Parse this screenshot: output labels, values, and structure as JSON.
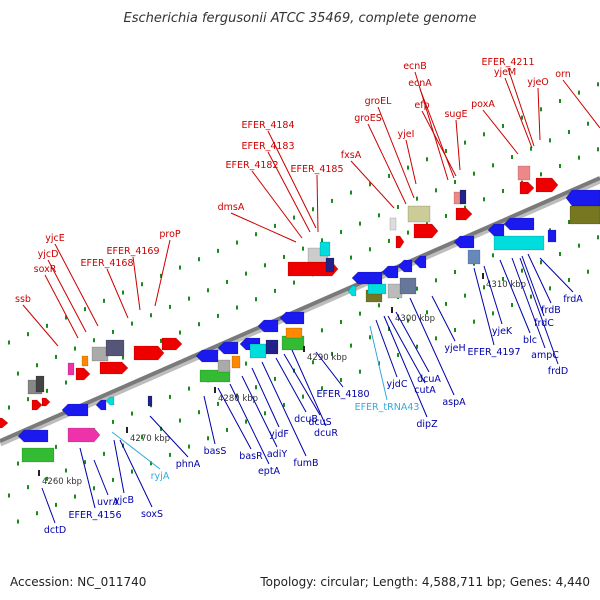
{
  "title": "Escherichia fergusonii ATCC 35469, complete genome",
  "footer": {
    "accession": "Accession: NC_011740",
    "summary": "Topology: circular; Length: 4,588,711 bp; Genes: 4,440"
  },
  "colors": {
    "label_top": "#cc0000",
    "label_bottom": "#0000aa",
    "label_trna": "#33aadd",
    "genome_line": "#7a7a7a",
    "tick": "#1a8a1a",
    "feature_red": "#ee0000",
    "feature_blue": "#1a1aee",
    "feature_cyan": "#00dddd",
    "feature_green": "#33bb33",
    "feature_magenta": "#ee33aa",
    "feature_orange": "#ff8800",
    "feature_olive": "#777722",
    "feature_pink": "#ee8888",
    "feature_tan": "#cccc99",
    "feature_darkblue": "#222288"
  },
  "ticks": [
    "4260 kbp",
    "4270 kbp",
    "4280 kbp",
    "4290 kbp",
    "4300 kbp",
    "4310 kbp"
  ],
  "top_genes": [
    "ssb",
    "soxR",
    "yjcD",
    "yjcE",
    "EFER_4168",
    "EFER_4169",
    "proP",
    "dmsA",
    "EFER_4182",
    "EFER_4183",
    "EFER_4184",
    "EFER_4185",
    "fxsA",
    "groES",
    "groEL",
    "yjeI",
    "ecnB",
    "ecnA",
    "efp",
    "sugE",
    "poxA",
    "EFER_4211",
    "yjeM",
    "yjeO",
    "orn"
  ],
  "bottom_genes": [
    "dctD",
    "EFER_4156",
    "uvrA",
    "yjcB",
    "soxS",
    "ryjA",
    "phnA",
    "basS",
    "basR",
    "eptA",
    "adiY",
    "yjdF",
    "fumB",
    "dcuB",
    "dcuR",
    "dcuS",
    "EFER_4180",
    "EFER_tRNA43",
    "yjdC",
    "dipZ",
    "cutA",
    "dcuA",
    "aspA",
    "yjeH",
    "EFER_4197",
    "yjeK",
    "blc",
    "ampC",
    "frdC",
    "frdB",
    "frdD",
    "frdA"
  ]
}
